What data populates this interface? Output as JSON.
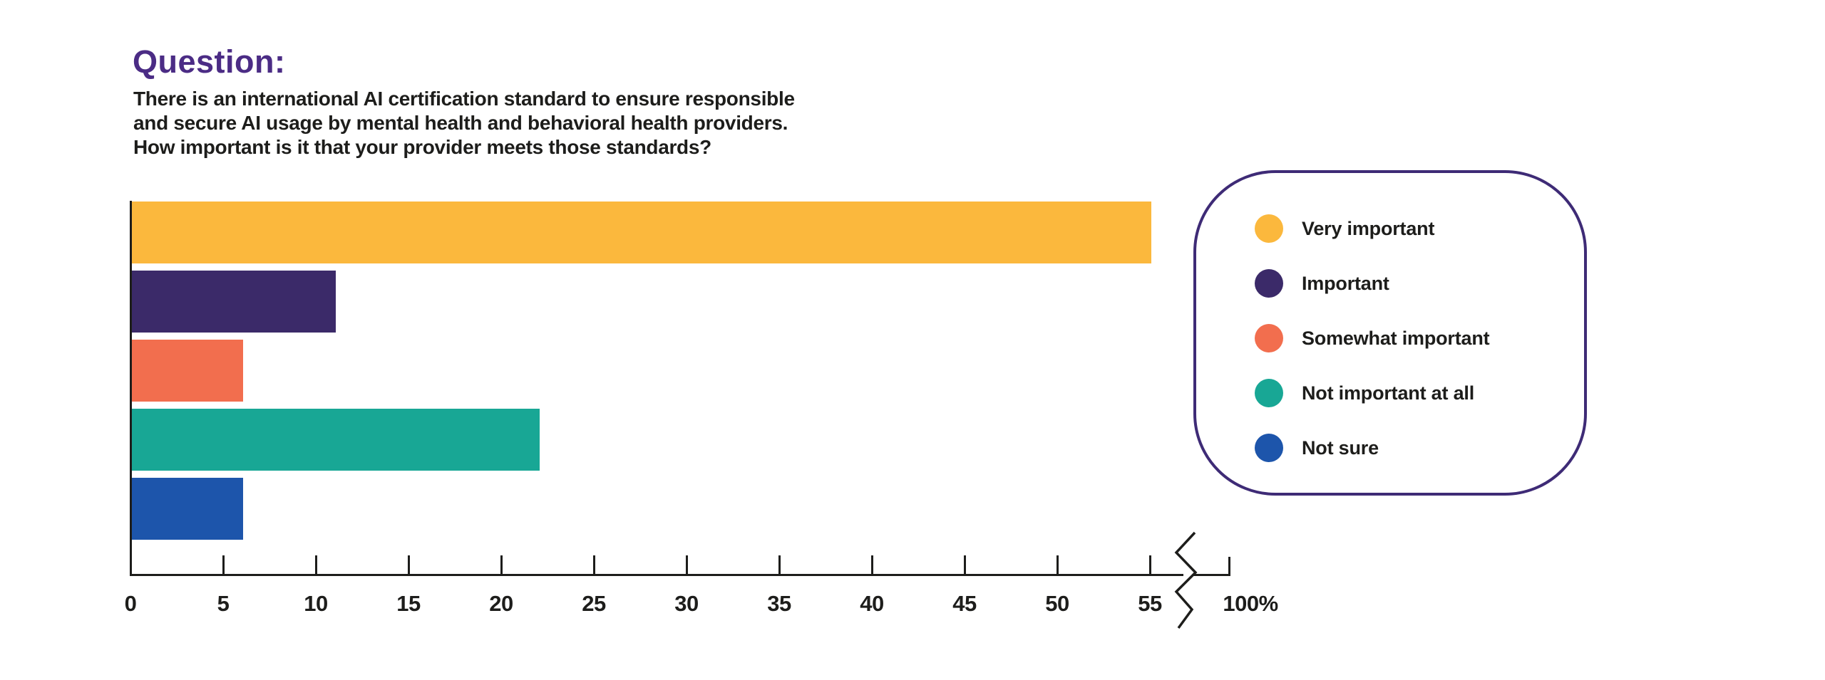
{
  "question": {
    "heading": "Question:",
    "text": "There is an international AI certification standard to ensure responsible\nand secure AI usage by mental health and behavioral health providers.\nHow important is it that your provider meets those standards?"
  },
  "chart_data": {
    "type": "bar",
    "orientation": "horizontal",
    "categories": [
      "Very important",
      "Important",
      "Somewhat important",
      "Not important at all",
      "Not sure"
    ],
    "values": [
      55,
      11,
      6,
      22,
      6
    ],
    "value_unit": "percent",
    "series_colors": [
      "#fbb83d",
      "#3b2a69",
      "#f26e4e",
      "#18a795",
      "#1d55ab"
    ],
    "x_ticks": [
      0,
      5,
      10,
      15,
      20,
      25,
      30,
      35,
      40,
      45,
      50,
      55
    ],
    "x_axis_break": true,
    "x_axis_end_label": "100%",
    "xlim": [
      0,
      100
    ],
    "title": "",
    "xlabel": "",
    "ylabel": "",
    "grid": false,
    "legend_position": "right"
  },
  "colors": {
    "heading": "#4b2c85",
    "body_text": "#1d1d1b",
    "axis": "#1d1d1b",
    "legend_border": "#3e2b76",
    "background": "#ffffff"
  }
}
